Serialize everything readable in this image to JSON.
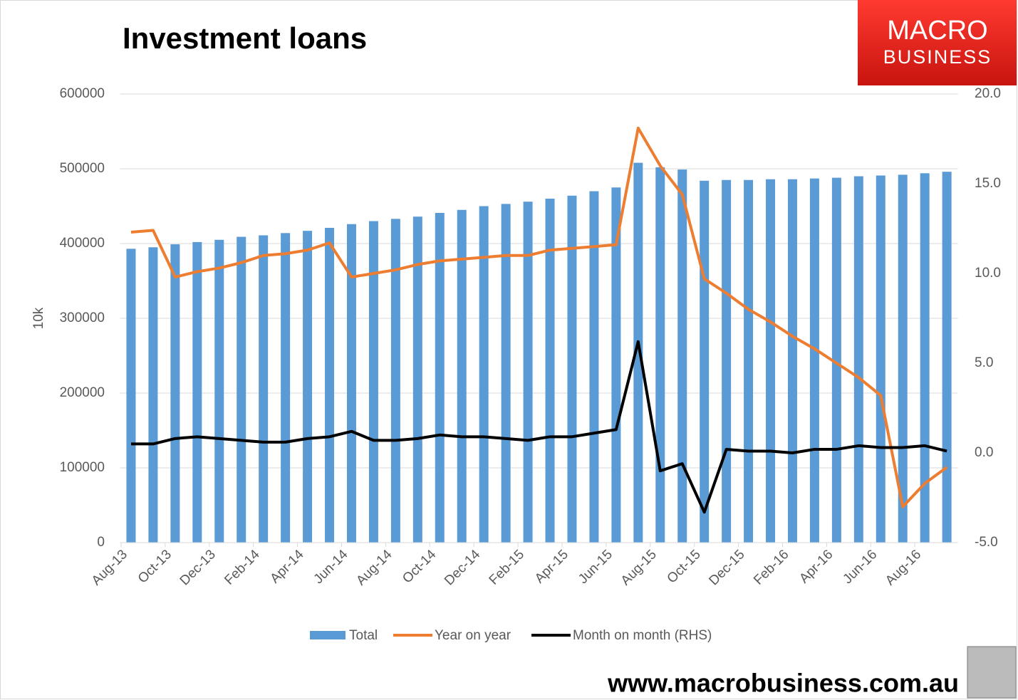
{
  "chart_data": {
    "type": "bar-line",
    "title": "Investment loans",
    "y_label": "10k",
    "categories": [
      "Aug-13",
      null,
      "Oct-13",
      null,
      "Dec-13",
      null,
      "Feb-14",
      null,
      "Apr-14",
      null,
      "Jun-14",
      null,
      "Aug-14",
      null,
      "Oct-14",
      null,
      "Dec-14",
      null,
      "Feb-15",
      null,
      "Apr-15",
      null,
      "Jun-15",
      null,
      "Aug-15",
      null,
      "Oct-15",
      null,
      "Dec-15",
      null,
      "Feb-16",
      null,
      "Apr-16",
      null,
      "Jun-16",
      null,
      "Aug-16",
      null
    ],
    "series": [
      {
        "name": "Total",
        "type": "bar",
        "color": "#5b9bd5",
        "values": [
          393000,
          395000,
          399000,
          402000,
          405000,
          409000,
          411000,
          414000,
          417000,
          421000,
          426000,
          430000,
          433000,
          436000,
          441000,
          445000,
          450000,
          453000,
          456000,
          460000,
          464000,
          470000,
          475000,
          508000,
          502000,
          499000,
          484000,
          485000,
          485000,
          486000,
          486000,
          487000,
          488000,
          490000,
          491000,
          492000,
          494000,
          496000
        ]
      },
      {
        "name": "Year on year",
        "type": "line",
        "axis": "y2",
        "color": "#ed7d31",
        "values": [
          12.3,
          12.4,
          9.8,
          10.1,
          10.3,
          10.6,
          11.0,
          11.1,
          11.3,
          11.7,
          9.8,
          10.0,
          10.2,
          10.5,
          10.7,
          10.8,
          10.9,
          11.0,
          11.0,
          11.3,
          11.4,
          11.5,
          11.6,
          18.1,
          16.0,
          14.4,
          9.7,
          8.9,
          8.0,
          7.3,
          6.5,
          5.8,
          5.0,
          4.2,
          3.2,
          -3.0,
          -1.7,
          -0.8
        ]
      },
      {
        "name": "Month on month (RHS)",
        "type": "line",
        "axis": "y2",
        "color": "#000000",
        "values": [
          0.5,
          0.5,
          0.8,
          0.9,
          0.8,
          0.7,
          0.6,
          0.6,
          0.8,
          0.9,
          1.2,
          0.7,
          0.7,
          0.8,
          1.0,
          0.9,
          0.9,
          0.8,
          0.7,
          0.9,
          0.9,
          1.1,
          1.3,
          6.2,
          -1.0,
          -0.6,
          -3.3,
          0.2,
          0.1,
          0.1,
          0.0,
          0.2,
          0.2,
          0.4,
          0.3,
          0.3,
          0.4,
          0.1
        ]
      }
    ],
    "ylim": [
      0,
      600000
    ],
    "yticks": [
      0,
      100000,
      200000,
      300000,
      400000,
      500000,
      600000
    ],
    "y2lim": [
      -5,
      20
    ],
    "y2ticks": [
      {
        "value": -5,
        "label": "-5.0"
      },
      {
        "value": 0,
        "label": "0.0"
      },
      {
        "value": 5,
        "label": "5.0"
      },
      {
        "value": 10,
        "label": "10.0"
      },
      {
        "value": 15,
        "label": "15.0"
      },
      {
        "value": 20,
        "label": "20.0"
      }
    ],
    "grid": true,
    "legend": "bottom"
  },
  "logo": {
    "line1": "MACRO",
    "line2": "BUSINESS"
  },
  "website": "www.macrobusiness.com.au"
}
